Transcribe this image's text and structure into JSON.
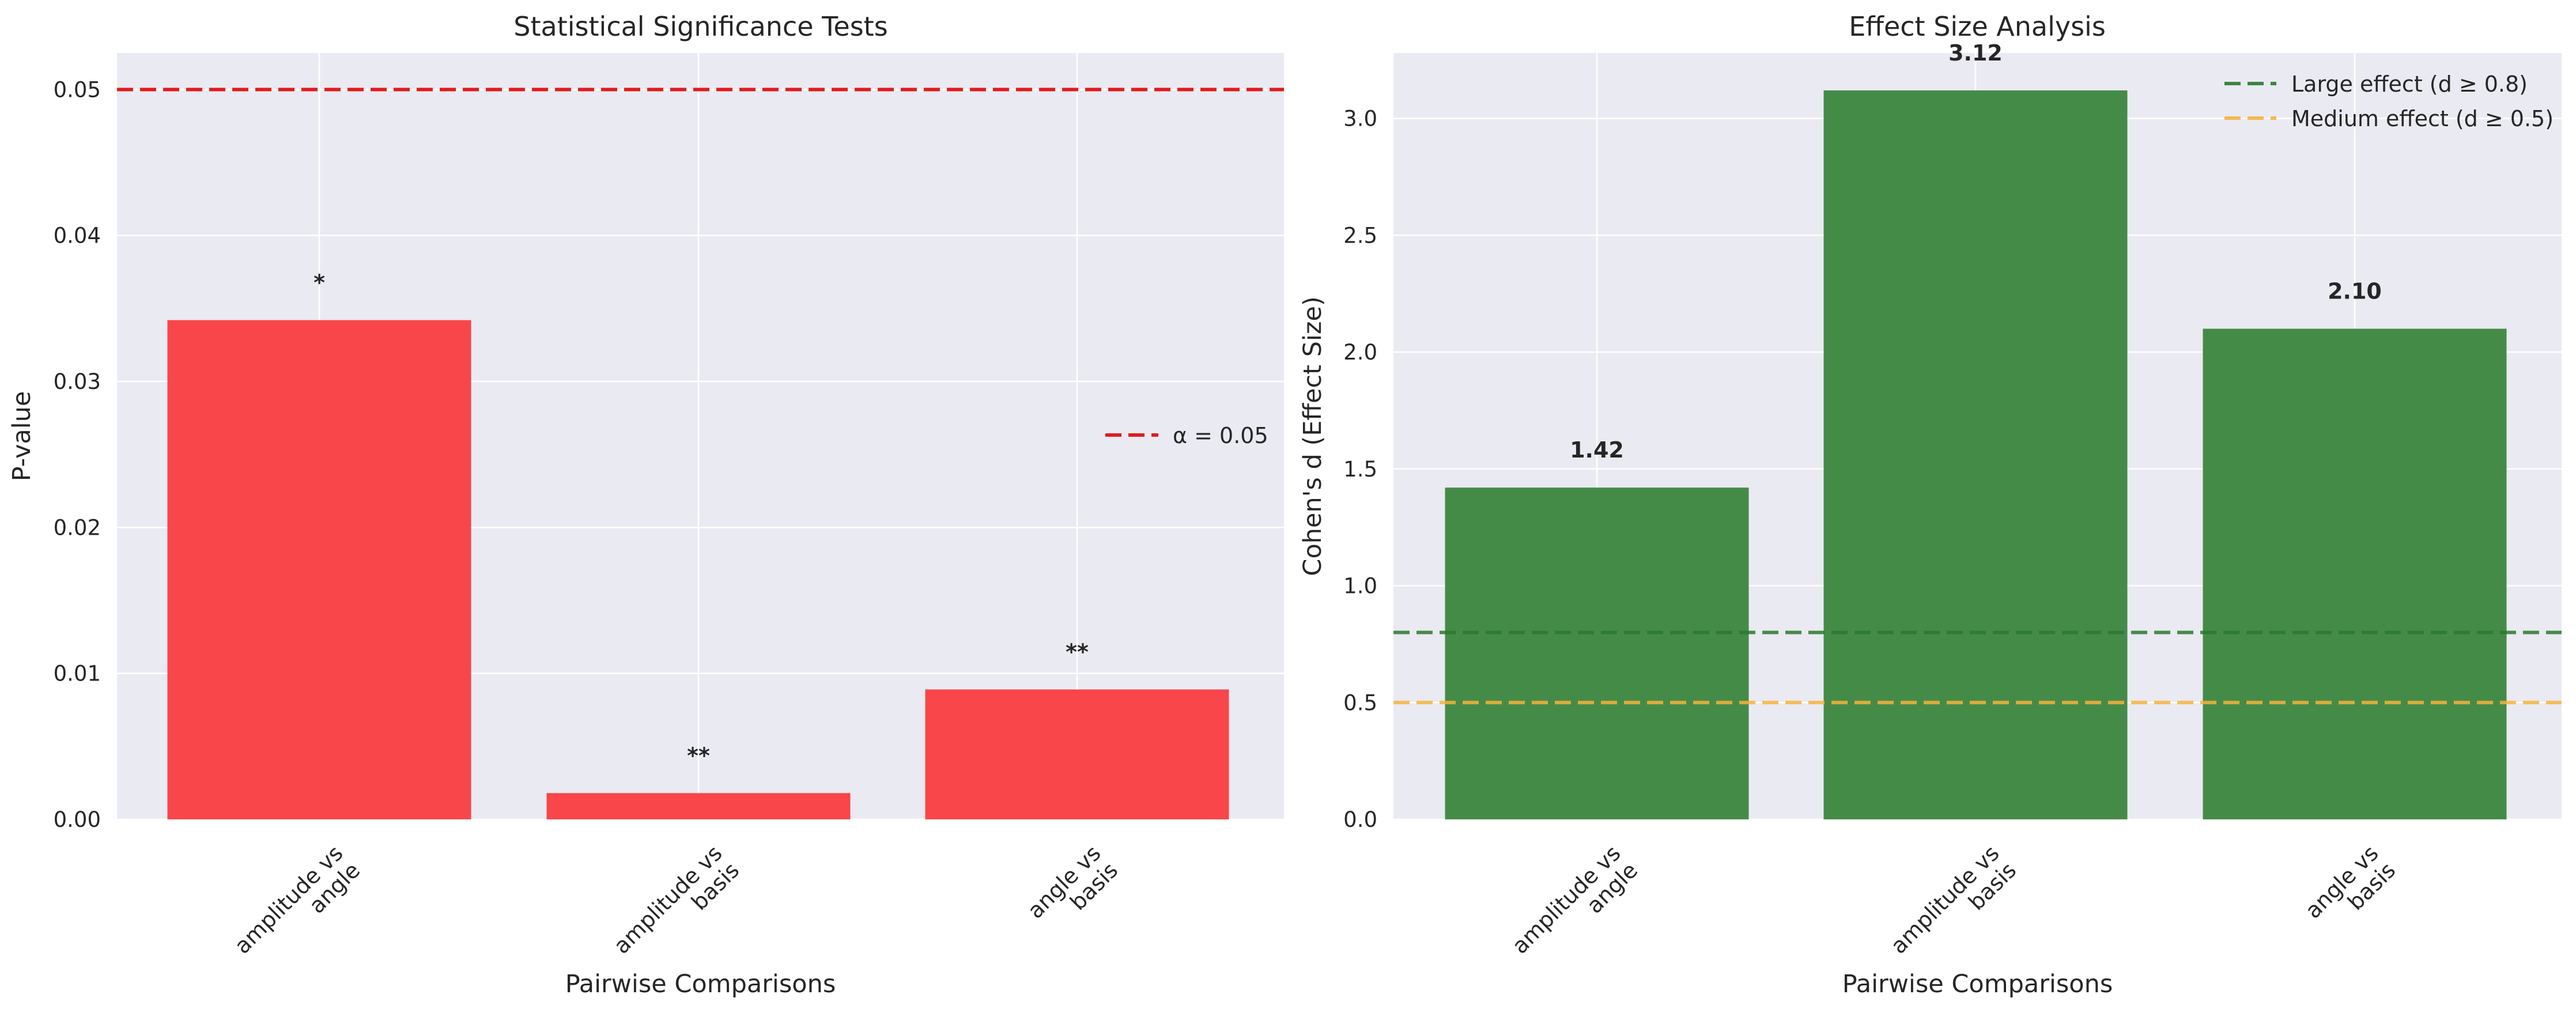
{
  "chart_data": [
    {
      "type": "bar",
      "title": "Statistical Significance Tests",
      "xlabel": "Pairwise Comparisons",
      "ylabel": "P-value",
      "categories": [
        "amplitude vs\nangle",
        "amplitude vs\nbasis",
        "angle vs\nbasis"
      ],
      "values": [
        0.0342,
        0.0018,
        0.0089
      ],
      "bar_labels": [
        "*",
        "**",
        "**"
      ],
      "ylim": [
        0,
        0.0525
      ],
      "yticks": [
        "0.00",
        "0.01",
        "0.02",
        "0.03",
        "0.04",
        "0.05"
      ],
      "ytick_values": [
        0,
        0.01,
        0.02,
        0.03,
        0.04,
        0.05
      ],
      "bar_color": "#f8464a",
      "reference_lines": [
        {
          "y": 0.05,
          "label": "α = 0.05",
          "color": "#e31a1c",
          "style": "dashed"
        }
      ],
      "legend": {
        "entries": [
          "α = 0.05"
        ],
        "placement": "center-right"
      },
      "grid": true
    },
    {
      "type": "bar",
      "title": "Effect Size Analysis",
      "xlabel": "Pairwise Comparisons",
      "ylabel": "Cohen's d (Effect Size)",
      "categories": [
        "amplitude vs\nangle",
        "amplitude vs\nbasis",
        "angle vs\nbasis"
      ],
      "values": [
        1.42,
        3.12,
        2.1
      ],
      "bar_labels": [
        "1.42",
        "3.12",
        "2.10"
      ],
      "ylim": [
        0,
        3.28
      ],
      "yticks": [
        "0.0",
        "0.5",
        "1.0",
        "1.5",
        "2.0",
        "2.5",
        "3.0"
      ],
      "ytick_values": [
        0,
        0.5,
        1.0,
        1.5,
        2.0,
        2.5,
        3.0
      ],
      "bar_color": "#458b48",
      "reference_lines": [
        {
          "y": 0.8,
          "label": "Large effect (d ≥ 0.8)",
          "color": "#2a7a2e",
          "style": "dashed"
        },
        {
          "y": 0.5,
          "label": "Medium effect (d ≥ 0.5)",
          "color": "#f7b23b",
          "style": "dashed"
        }
      ],
      "legend": {
        "entries": [
          "Large effect (d ≥ 0.8)",
          "Medium effect (d ≥ 0.5)"
        ],
        "placement": "top-right"
      },
      "grid": true
    }
  ]
}
